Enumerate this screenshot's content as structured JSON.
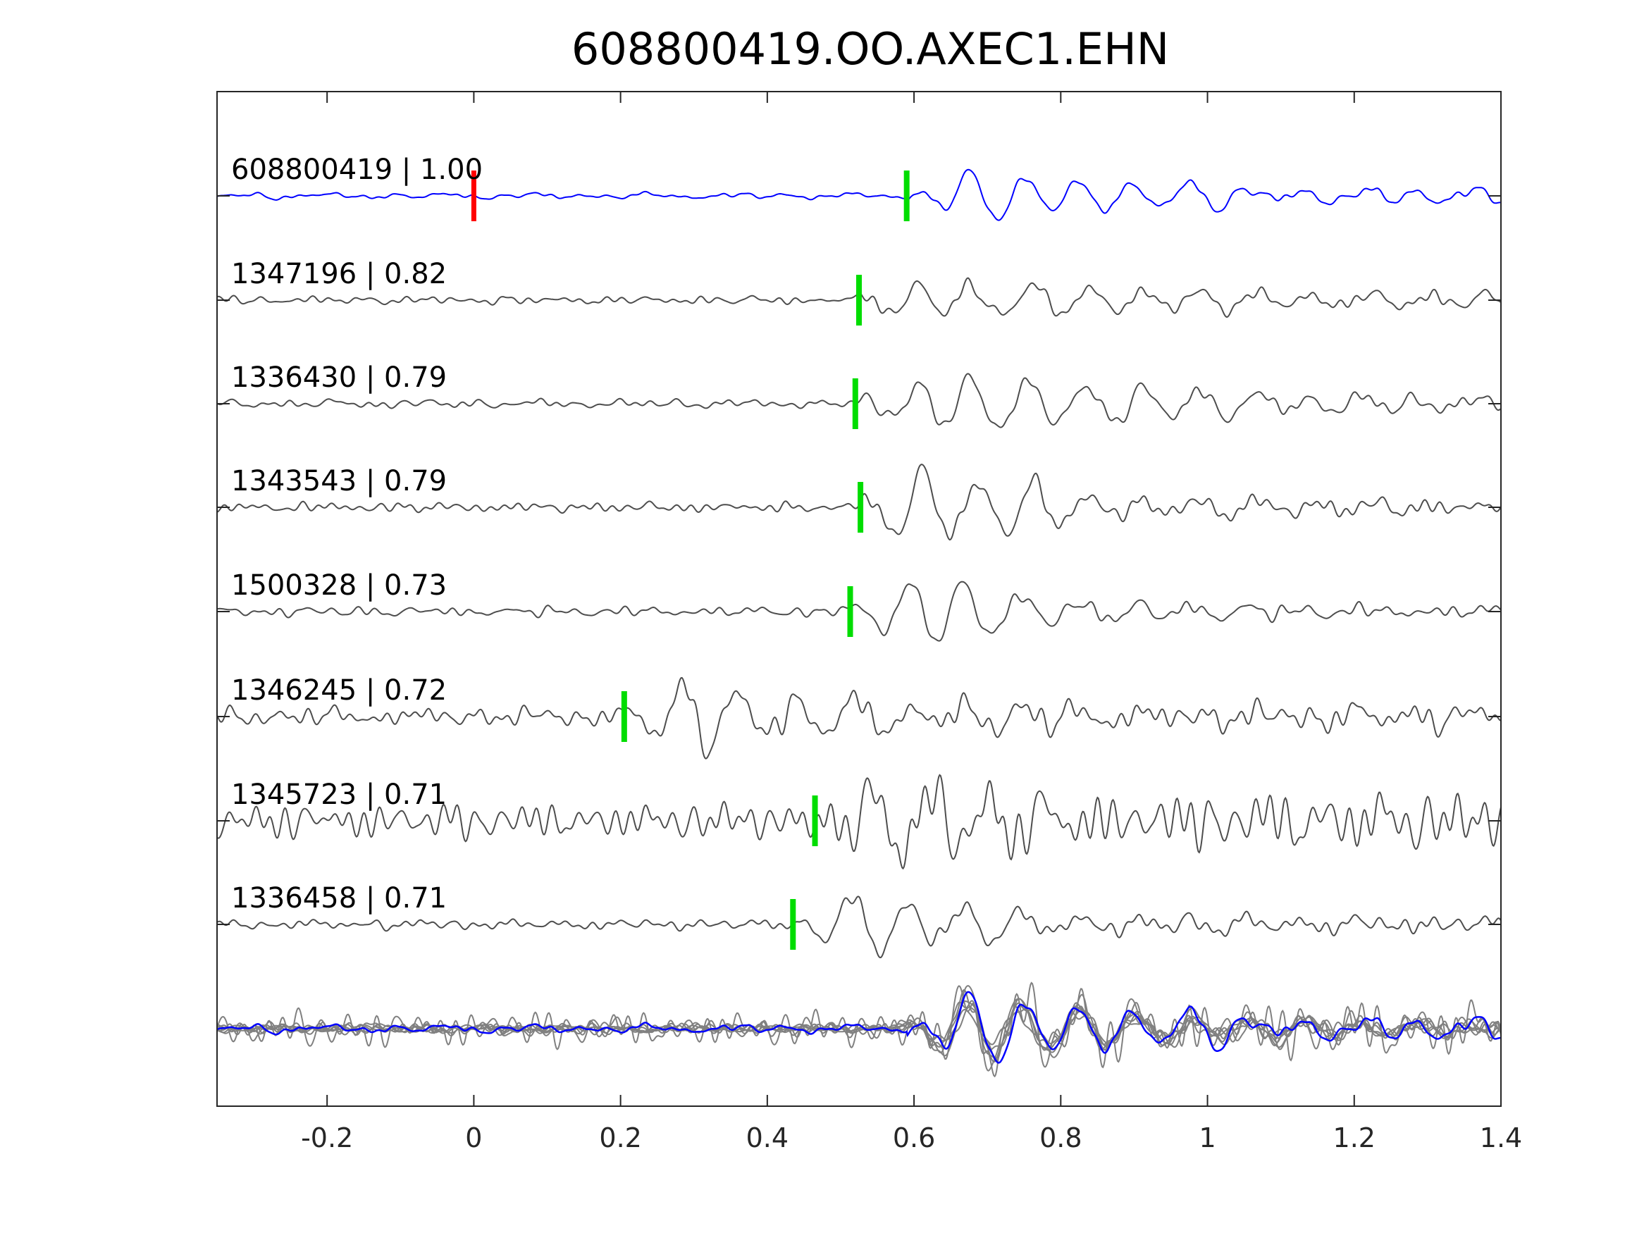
{
  "chart_data": {
    "type": "line",
    "title": "608800419.OO.AXEC1.EHN",
    "xlabel": "",
    "ylabel": "",
    "xlim": [
      -0.35,
      1.4
    ],
    "x_ticks": [
      -0.2,
      0,
      0.2,
      0.4,
      0.6,
      0.8,
      1,
      1.2,
      1.4
    ],
    "x_tick_labels": [
      "-0.2",
      "0",
      "0.2",
      "0.4",
      "0.6",
      "0.8",
      "1",
      "1.2",
      "1.4"
    ],
    "grid": false,
    "colors": {
      "template": "#0000ff",
      "neighbor": "#4d4d4d",
      "stack_neighbor": "#808080",
      "template_pick": "#ff0000",
      "phase_pick": "#00dd00",
      "axes": "#262626"
    },
    "series": [
      {
        "id": "608800419",
        "cc": "1.00",
        "label": "608800419 | 1.00",
        "pick": 0.59,
        "origin": 0.0,
        "role": "template"
      },
      {
        "id": "1347196",
        "cc": "0.82",
        "label": "1347196 | 0.82",
        "pick": 0.525
      },
      {
        "id": "1336430",
        "cc": "0.79",
        "label": "1336430 | 0.79",
        "pick": 0.52
      },
      {
        "id": "1343543",
        "cc": "0.79",
        "label": "1343543 | 0.79",
        "pick": 0.527
      },
      {
        "id": "1500328",
        "cc": "0.73",
        "label": "1500328 | 0.73",
        "pick": 0.513
      },
      {
        "id": "1346245",
        "cc": "0.72",
        "label": "1346245 | 0.72",
        "pick": 0.205
      },
      {
        "id": "1345723",
        "cc": "0.71",
        "label": "1345723 | 0.71",
        "pick": 0.465
      },
      {
        "id": "1336458",
        "cc": "0.71",
        "label": "1336458 | 0.71",
        "pick": 0.435
      }
    ],
    "stack": {
      "description_shown": false,
      "members": "all traces aligned on pick"
    }
  }
}
